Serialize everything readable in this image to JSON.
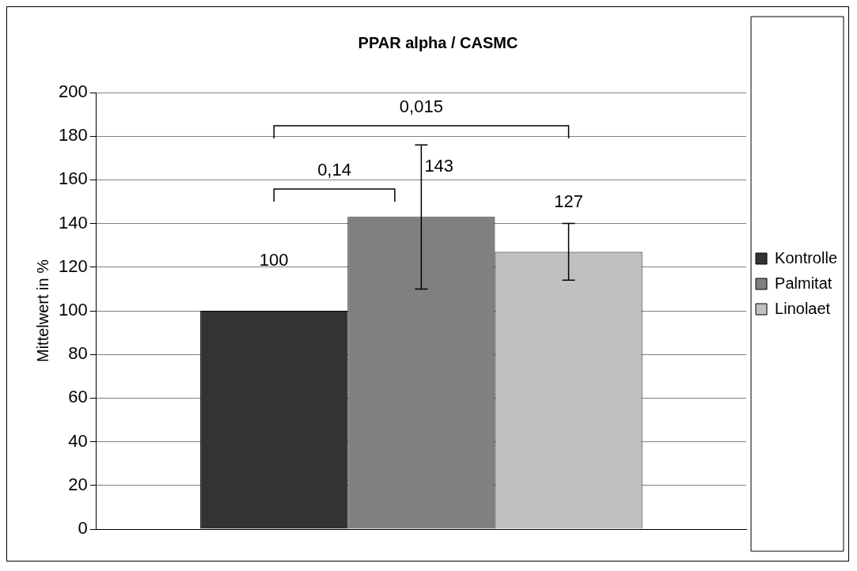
{
  "chart_data": {
    "type": "bar",
    "title": "PPAR alpha / CASMC",
    "ylabel": "Mittelwert in %",
    "categories": [
      null
    ],
    "series": [
      {
        "name": "Kontrolle",
        "color": "#333333",
        "values": [
          100
        ]
      },
      {
        "name": "Palmitat",
        "color": "#808080",
        "values": [
          143
        ],
        "errors": [
          33
        ]
      },
      {
        "name": "Linolaet",
        "color": "#c0c0c0",
        "values": [
          127
        ],
        "errors": [
          13
        ]
      }
    ],
    "ylim": [
      0,
      200
    ],
    "yticks": [
      0,
      20,
      40,
      60,
      80,
      100,
      120,
      140,
      160,
      180,
      200
    ],
    "grid": "y",
    "legend": "right",
    "data_labels": true,
    "annotations": [
      "0,015",
      "0,14"
    ]
  }
}
